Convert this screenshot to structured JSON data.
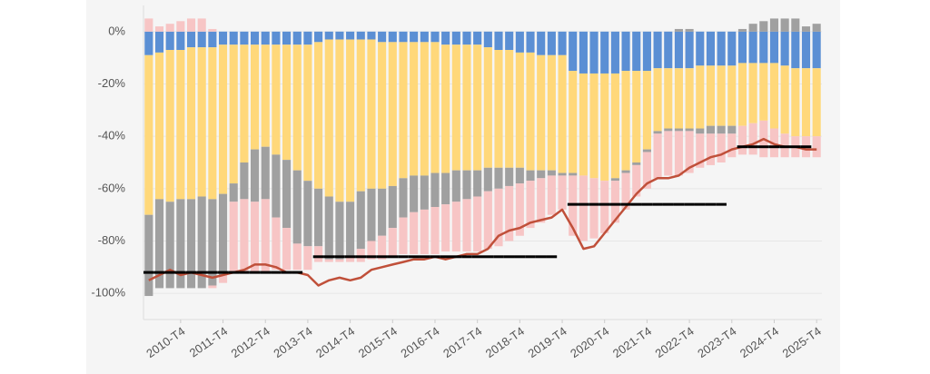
{
  "chart_data": {
    "type": "bar",
    "stacked": true,
    "grid": true,
    "categories": [
      null,
      null,
      null,
      "2010-T4",
      null,
      null,
      null,
      "2011-T4",
      null,
      null,
      null,
      "2012-T4",
      null,
      null,
      null,
      "2013-T4",
      null,
      null,
      null,
      "2014-T4",
      null,
      null,
      null,
      "2015-T4",
      null,
      null,
      null,
      "2016-T4",
      null,
      null,
      null,
      "2017-T4",
      null,
      null,
      null,
      "2018-T4",
      null,
      null,
      null,
      "2019-T4",
      null,
      null,
      null,
      "2020-T4",
      null,
      null,
      null,
      "2021-T4",
      null,
      null,
      null,
      "2022-T4",
      null,
      null,
      null,
      "2023-T4",
      null,
      null,
      null,
      "2024-T4",
      null,
      null,
      null,
      "2025-T4"
    ],
    "ylim": [
      -110,
      10
    ],
    "yticks": [
      {
        "value": 0,
        "label": "0%"
      },
      {
        "value": -20,
        "label": "-20%"
      },
      {
        "value": -40,
        "label": "-40%"
      },
      {
        "value": -60,
        "label": "-60%"
      },
      {
        "value": -80,
        "label": "-80%"
      },
      {
        "value": -100,
        "label": "-100%"
      }
    ],
    "series": [
      {
        "type": "bar",
        "color": "#5b8fd4",
        "values": [
          -9,
          -8,
          -7,
          -7,
          -6,
          -6,
          -6,
          -5,
          -5,
          -5,
          -5,
          -5,
          -5,
          -5,
          -5,
          -5,
          -4,
          -3,
          -3,
          -3,
          -3,
          -3,
          -4,
          -4,
          -4,
          -4,
          -4,
          -4,
          -5,
          -5,
          -5,
          -5,
          -6,
          -7,
          -7,
          -8,
          -8,
          -9,
          -9,
          -9,
          -15,
          -16,
          -16,
          -16,
          -16,
          -15,
          -15,
          -15,
          -14,
          -14,
          -14,
          -14,
          -13,
          -13,
          -13,
          -13,
          -12,
          -12,
          -12,
          -12,
          -13,
          -14,
          -14,
          -14
        ]
      },
      {
        "type": "bar",
        "color": "#ffd87a",
        "values": [
          -61,
          -56,
          -58,
          -57,
          -58,
          -57,
          -58,
          -57,
          -53,
          -45,
          -40,
          -39,
          -42,
          -44,
          -48,
          -52,
          -56,
          -60,
          -62,
          -62,
          -58,
          -57,
          -56,
          -55,
          -52,
          -51,
          -51,
          -50,
          -49,
          -48,
          -48,
          -48,
          -46,
          -45,
          -45,
          -44,
          -45,
          -44,
          -44,
          -45,
          -39,
          -39,
          -40,
          -41,
          -40,
          -38,
          -35,
          -30,
          -24,
          -23,
          -23,
          -23,
          -24,
          -23,
          -23,
          -23,
          -24,
          -23,
          -22,
          -25,
          -26,
          -26,
          -26,
          -26
        ]
      },
      {
        "type": "bar",
        "color": "#a0a0a0",
        "values": [
          -31,
          -34,
          -33,
          -34,
          -34,
          -35,
          -33,
          -31,
          -7,
          -14,
          -20,
          -20,
          -24,
          -26,
          -28,
          -25,
          -22,
          -24,
          -22,
          -21,
          -22,
          -20,
          -18,
          -16,
          -15,
          -14,
          -13,
          -13,
          -12,
          -12,
          -11,
          -10,
          -9,
          -8,
          -7,
          -6,
          -4,
          -3,
          -2,
          -1,
          -1,
          0,
          0,
          0,
          -1,
          -1,
          -1,
          -1,
          -1,
          -1,
          -1,
          -1,
          -2,
          -3,
          -3,
          -3,
          0,
          0,
          0,
          0,
          0,
          0,
          0,
          0
        ]
      },
      {
        "type": "bar",
        "color": "#f7c5c5",
        "values": [
          0,
          0,
          0,
          0,
          0,
          0,
          -1,
          -3,
          -27,
          -28,
          -27,
          -28,
          -20,
          -16,
          -10,
          -9,
          -6,
          -1,
          -1,
          -2,
          -5,
          -7,
          -9,
          -11,
          -14,
          -16,
          -17,
          -18,
          -18,
          -19,
          -20,
          -21,
          -22,
          -22,
          -21,
          -20,
          -18,
          -17,
          -15,
          -13,
          -23,
          -25,
          -23,
          -20,
          -16,
          -14,
          -12,
          -14,
          -17,
          -17,
          -17,
          -16,
          -13,
          -12,
          -11,
          -9,
          -11,
          -12,
          -14,
          -11,
          -9,
          -8,
          -8,
          -8
        ]
      },
      {
        "type": "bar",
        "color": "#f7c5c5",
        "values": [
          5,
          2,
          3,
          4,
          5,
          5,
          1,
          0,
          0,
          0,
          0,
          0,
          0,
          0,
          0,
          0,
          0,
          0,
          0,
          0,
          0,
          0,
          0,
          0,
          0,
          0,
          0,
          0,
          0,
          0,
          0,
          0,
          0,
          0,
          0,
          0,
          0,
          0,
          0,
          0,
          0,
          0,
          0,
          0,
          0,
          0,
          0,
          0,
          0,
          0,
          0,
          0,
          0,
          0,
          0,
          0,
          0,
          0,
          0,
          0,
          0,
          0,
          0,
          0
        ]
      },
      {
        "type": "bar",
        "color": "#a0a0a0",
        "values": [
          0,
          0,
          0,
          0,
          0,
          0,
          0,
          0,
          0,
          0,
          0,
          0,
          0,
          0,
          0,
          0,
          0,
          0,
          0,
          0,
          0,
          0,
          0,
          0,
          0,
          0,
          0,
          0,
          0,
          0,
          0,
          0,
          0,
          0,
          0,
          0,
          0,
          0,
          0,
          0,
          0,
          0,
          0,
          0,
          0,
          0,
          0,
          0,
          0,
          0,
          1,
          1,
          0,
          0,
          0,
          0,
          1,
          3,
          4,
          5,
          5,
          5,
          2,
          3
        ]
      },
      {
        "type": "line",
        "color": "#c0503a",
        "values": [
          -95,
          -93,
          -91,
          -93,
          -92,
          -93,
          -94,
          -93,
          -92,
          -91,
          -89,
          -89,
          -90,
          -92,
          -92,
          -93,
          -97,
          -95,
          -94,
          -95,
          -94,
          -91,
          -90,
          -89,
          -88,
          -87,
          -87,
          -86,
          -87,
          -86,
          -85,
          -85,
          -83,
          -78,
          -76,
          -75,
          -73,
          -72,
          -71,
          -68,
          -75,
          -83,
          -82,
          -77,
          -72,
          -67,
          -62,
          -58,
          -56,
          -56,
          -55,
          -52,
          -50,
          -48,
          -47,
          -45,
          -44,
          -43,
          -41,
          -43,
          -44,
          -44,
          -45,
          -45
        ]
      },
      {
        "type": "level",
        "color": "#000000",
        "values": [
          -92,
          -92,
          -92,
          -92,
          -92,
          -92,
          -92,
          -92,
          -92,
          -92,
          -92,
          -92,
          -92,
          -92,
          -92,
          null,
          -86,
          -86,
          -86,
          -86,
          -86,
          -86,
          -86,
          -86,
          -86,
          -86,
          -86,
          -86,
          -86,
          -86,
          -86,
          -86,
          -86,
          -86,
          -86,
          -86,
          -86,
          -86,
          -86,
          null,
          -66,
          -66,
          -66,
          -66,
          -66,
          -66,
          -66,
          -66,
          -66,
          -66,
          -66,
          -66,
          -66,
          -66,
          -66,
          null,
          -44,
          -44,
          -44,
          -44,
          -44,
          -44,
          -44,
          null
        ]
      }
    ]
  }
}
